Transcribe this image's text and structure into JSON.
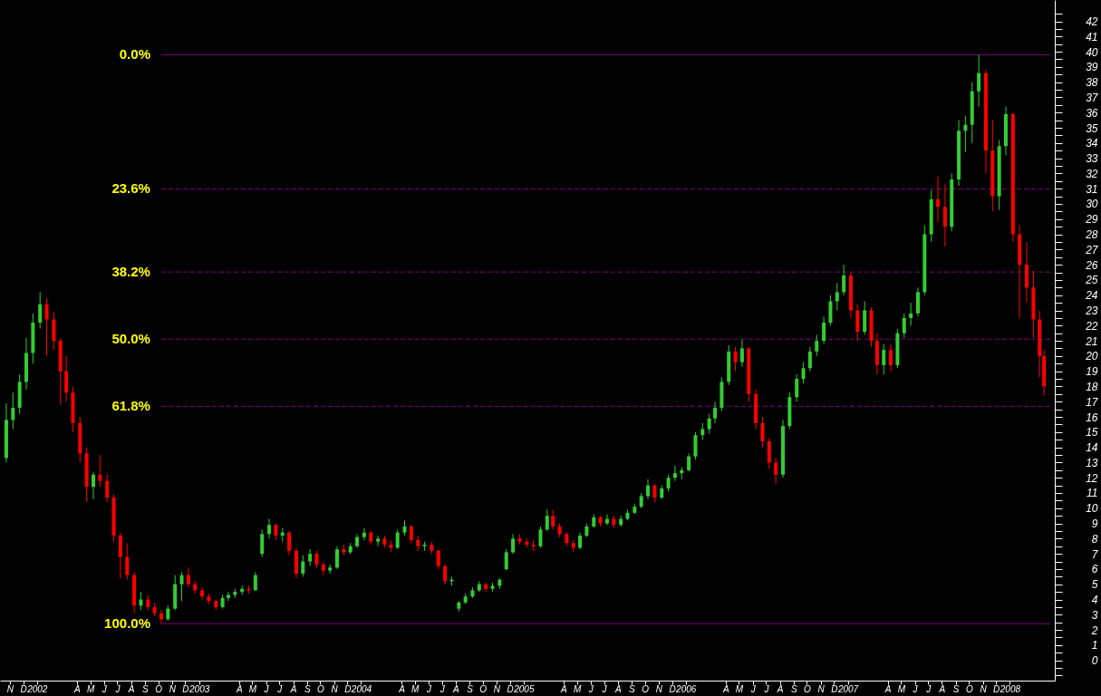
{
  "chart_data": {
    "type": "candlestick",
    "x": [
      "2001-10-24",
      "2001-11-08",
      "2001-11-23",
      "2001-12-08",
      "2001-12-23",
      "2002-01-08",
      "2002-01-23",
      "2002-02-08",
      "2002-02-23",
      "2002-03-08",
      "2002-03-23",
      "2002-04-08",
      "2002-04-23",
      "2002-05-08",
      "2002-05-23",
      "2002-06-08",
      "2002-06-23",
      "2002-07-08",
      "2002-07-23",
      "2002-08-08",
      "2002-08-23",
      "2002-09-08",
      "2002-09-23",
      "2002-10-08",
      "2002-10-23",
      "2002-11-08",
      "2002-11-23",
      "2002-12-08",
      "2002-12-23",
      "2003-01-08",
      "2003-01-23",
      "2003-02-08",
      "2003-02-23",
      "2003-03-08",
      "2003-03-23",
      "2003-04-08",
      "2003-04-23",
      "2003-05-08",
      "2003-05-23",
      "2003-06-08",
      "2003-06-23",
      "2003-07-08",
      "2003-07-23",
      "2003-08-08",
      "2003-08-23",
      "2003-09-08",
      "2003-09-23",
      "2003-10-08",
      "2003-10-23",
      "2003-11-08",
      "2003-11-23",
      "2003-12-08",
      "2003-12-23",
      "2004-01-08",
      "2004-01-23",
      "2004-02-08",
      "2004-02-23",
      "2004-03-08",
      "2004-03-23",
      "2004-04-08",
      "2004-04-23",
      "2004-05-08",
      "2004-05-23",
      "2004-06-08",
      "2004-06-23",
      "2004-07-08",
      "2004-07-23",
      "2004-08-08",
      "2004-08-23",
      "2004-09-08",
      "2004-09-23",
      "2004-10-08",
      "2004-10-23",
      "2004-11-08",
      "2004-11-23",
      "2004-12-08",
      "2004-12-23",
      "2005-01-08",
      "2005-01-23",
      "2005-02-08",
      "2005-02-23",
      "2005-03-08",
      "2005-03-23",
      "2005-04-08",
      "2005-04-23",
      "2005-05-08",
      "2005-05-23",
      "2005-06-08",
      "2005-06-23",
      "2005-07-08",
      "2005-07-23",
      "2005-08-08",
      "2005-08-23",
      "2005-09-08",
      "2005-09-23",
      "2005-10-08",
      "2005-10-23",
      "2005-11-08",
      "2005-11-23",
      "2005-12-08",
      "2005-12-23",
      "2006-01-08",
      "2006-01-23",
      "2006-02-08",
      "2006-02-23",
      "2006-03-08",
      "2006-03-23",
      "2006-04-08",
      "2006-04-23",
      "2006-05-08",
      "2006-05-23",
      "2006-06-08",
      "2006-06-23",
      "2006-07-08",
      "2006-07-23",
      "2006-08-08",
      "2006-08-23",
      "2006-09-08",
      "2006-09-23",
      "2006-10-08",
      "2006-10-23",
      "2006-11-08",
      "2006-11-23",
      "2006-12-08",
      "2006-12-23",
      "2007-01-08",
      "2007-01-23",
      "2007-02-08",
      "2007-02-23",
      "2007-03-08",
      "2007-03-23",
      "2007-04-08",
      "2007-04-23",
      "2007-05-08",
      "2007-05-23",
      "2007-06-08",
      "2007-06-23",
      "2007-07-08",
      "2007-07-23",
      "2007-08-08",
      "2007-08-23",
      "2007-09-08",
      "2007-09-23",
      "2007-10-08",
      "2007-10-23",
      "2007-11-08",
      "2007-11-23",
      "2007-12-08",
      "2007-12-23",
      "2008-01-08",
      "2008-01-23",
      "2008-02-08",
      "2008-02-23",
      "2008-03-08",
      "2008-03-18"
    ],
    "ohlc": [
      [
        13.3,
        16.9,
        13.0,
        15.8
      ],
      [
        15.8,
        17.6,
        15.2,
        16.6
      ],
      [
        16.6,
        18.8,
        16.2,
        18.3
      ],
      [
        18.3,
        21.2,
        17.8,
        20.2
      ],
      [
        20.2,
        22.8,
        19.5,
        22.2
      ],
      [
        22.2,
        24.2,
        21.8,
        23.4
      ],
      [
        23.4,
        23.8,
        20.0,
        22.4
      ],
      [
        22.4,
        22.9,
        20.4,
        21.0
      ],
      [
        21.0,
        21.2,
        16.8,
        19.0
      ],
      [
        19.0,
        20.0,
        17.0,
        17.6
      ],
      [
        17.6,
        18.0,
        15.0,
        15.6
      ],
      [
        15.6,
        16.0,
        13.0,
        13.6
      ],
      [
        13.6,
        14.0,
        10.4,
        11.4
      ],
      [
        11.4,
        12.4,
        10.6,
        12.2
      ],
      [
        12.2,
        13.5,
        11.4,
        11.8
      ],
      [
        11.8,
        12.2,
        10.4,
        10.7
      ],
      [
        10.7,
        10.9,
        7.8,
        8.2
      ],
      [
        8.2,
        8.4,
        5.4,
        6.8
      ],
      [
        6.8,
        7.7,
        5.3,
        5.6
      ],
      [
        5.6,
        5.8,
        3.1,
        3.6
      ],
      [
        3.6,
        4.5,
        3.3,
        4.0
      ],
      [
        4.0,
        4.3,
        3.3,
        3.5
      ],
      [
        3.5,
        3.8,
        2.9,
        3.1
      ],
      [
        3.1,
        3.3,
        2.4,
        2.7
      ],
      [
        2.7,
        3.6,
        2.6,
        3.4
      ],
      [
        3.4,
        5.6,
        3.3,
        5.0
      ],
      [
        5.0,
        5.8,
        3.9,
        5.6
      ],
      [
        5.6,
        6.1,
        4.8,
        5.0
      ],
      [
        5.0,
        5.2,
        4.4,
        4.6
      ],
      [
        4.6,
        4.8,
        4.0,
        4.2
      ],
      [
        4.2,
        4.4,
        3.7,
        3.9
      ],
      [
        3.9,
        4.0,
        3.3,
        3.5
      ],
      [
        3.5,
        4.3,
        3.4,
        4.1
      ],
      [
        4.1,
        4.5,
        3.9,
        4.3
      ],
      [
        4.3,
        4.7,
        4.1,
        4.5
      ],
      [
        4.5,
        4.9,
        4.3,
        4.7
      ],
      [
        4.7,
        4.9,
        4.4,
        4.6
      ],
      [
        4.6,
        5.8,
        4.6,
        5.6
      ],
      [
        7.0,
        8.6,
        6.8,
        8.3
      ],
      [
        8.3,
        9.3,
        8.0,
        8.9
      ],
      [
        8.9,
        9.0,
        7.9,
        8.2
      ],
      [
        8.2,
        8.7,
        7.8,
        8.4
      ],
      [
        8.4,
        8.5,
        6.9,
        7.2
      ],
      [
        7.2,
        7.4,
        5.4,
        5.7
      ],
      [
        5.7,
        6.9,
        5.5,
        6.5
      ],
      [
        6.5,
        7.3,
        6.2,
        7.0
      ],
      [
        7.0,
        7.2,
        6.1,
        6.3
      ],
      [
        6.3,
        6.5,
        5.6,
        5.9
      ],
      [
        5.9,
        6.3,
        5.7,
        6.1
      ],
      [
        6.1,
        7.5,
        6.0,
        7.3
      ],
      [
        7.3,
        7.6,
        6.9,
        7.1
      ],
      [
        7.1,
        7.7,
        7.0,
        7.5
      ],
      [
        7.5,
        8.3,
        7.4,
        8.1
      ],
      [
        8.1,
        8.7,
        7.9,
        8.4
      ],
      [
        8.4,
        8.5,
        7.6,
        7.8
      ],
      [
        7.8,
        8.2,
        7.5,
        8.0
      ],
      [
        8.0,
        8.2,
        7.4,
        7.6
      ],
      [
        7.6,
        7.9,
        7.1,
        7.4
      ],
      [
        7.4,
        8.6,
        7.3,
        8.4
      ],
      [
        8.4,
        9.2,
        8.2,
        8.8
      ],
      [
        8.8,
        8.9,
        7.7,
        7.9
      ],
      [
        7.9,
        8.2,
        7.2,
        7.5
      ],
      [
        7.5,
        7.8,
        7.2,
        7.6
      ],
      [
        7.6,
        7.8,
        7.0,
        7.2
      ],
      [
        7.2,
        7.3,
        6.0,
        6.2
      ],
      [
        6.2,
        6.3,
        5.0,
        5.2
      ],
      [
        5.2,
        5.5,
        4.9,
        5.3
      ],
      [
        3.4,
        3.9,
        3.2,
        3.8
      ],
      [
        3.8,
        4.4,
        3.7,
        4.2
      ],
      [
        4.2,
        4.8,
        4.1,
        4.6
      ],
      [
        4.6,
        5.2,
        4.5,
        5.0
      ],
      [
        5.0,
        5.1,
        4.5,
        4.7
      ],
      [
        4.7,
        5.1,
        4.5,
        4.9
      ],
      [
        4.9,
        5.4,
        4.7,
        5.3
      ],
      [
        6.0,
        7.3,
        5.9,
        7.1
      ],
      [
        7.1,
        8.3,
        7.0,
        8.0
      ],
      [
        8.0,
        8.3,
        7.6,
        7.8
      ],
      [
        7.8,
        8.0,
        7.4,
        7.6
      ],
      [
        7.6,
        7.9,
        7.2,
        7.5
      ],
      [
        7.5,
        8.8,
        7.4,
        8.6
      ],
      [
        8.6,
        9.9,
        8.5,
        9.5
      ],
      [
        9.5,
        9.9,
        8.6,
        8.8
      ],
      [
        8.8,
        9.0,
        8.1,
        8.3
      ],
      [
        8.3,
        8.4,
        7.5,
        7.7
      ],
      [
        7.7,
        7.9,
        7.1,
        7.4
      ],
      [
        7.4,
        8.4,
        7.3,
        8.2
      ],
      [
        8.2,
        9.0,
        8.1,
        8.8
      ],
      [
        8.8,
        9.6,
        8.7,
        9.4
      ],
      [
        9.4,
        9.5,
        8.8,
        9.0
      ],
      [
        9.0,
        9.6,
        8.9,
        9.3
      ],
      [
        9.3,
        9.5,
        8.7,
        8.9
      ],
      [
        8.9,
        9.5,
        8.8,
        9.3
      ],
      [
        9.3,
        9.9,
        9.2,
        9.7
      ],
      [
        9.7,
        10.3,
        9.6,
        10.1
      ],
      [
        10.1,
        11.0,
        10.0,
        10.8
      ],
      [
        10.8,
        11.9,
        10.6,
        11.5
      ],
      [
        11.5,
        11.6,
        10.4,
        10.7
      ],
      [
        10.7,
        11.5,
        10.6,
        11.3
      ],
      [
        11.3,
        12.2,
        11.1,
        12.0
      ],
      [
        12.0,
        12.8,
        11.8,
        12.3
      ],
      [
        12.3,
        12.7,
        11.9,
        12.5
      ],
      [
        12.5,
        13.6,
        12.4,
        13.4
      ],
      [
        13.4,
        15.0,
        13.2,
        14.8
      ],
      [
        14.8,
        15.6,
        14.5,
        15.2
      ],
      [
        15.2,
        16.2,
        14.9,
        15.9
      ],
      [
        15.9,
        17.0,
        15.6,
        16.6
      ],
      [
        16.6,
        18.6,
        16.4,
        18.3
      ],
      [
        18.3,
        20.7,
        18.1,
        20.3
      ],
      [
        20.3,
        20.6,
        19.0,
        19.6
      ],
      [
        19.6,
        21.1,
        19.3,
        20.5
      ],
      [
        20.5,
        20.6,
        17.0,
        17.5
      ],
      [
        17.5,
        17.8,
        15.2,
        15.6
      ],
      [
        15.6,
        16.0,
        14.0,
        14.4
      ],
      [
        14.4,
        14.6,
        12.6,
        13.0
      ],
      [
        13.0,
        13.3,
        11.6,
        12.2
      ],
      [
        12.2,
        15.8,
        12.0,
        15.4
      ],
      [
        15.4,
        17.6,
        15.2,
        17.3
      ],
      [
        17.3,
        18.8,
        17.0,
        18.5
      ],
      [
        18.5,
        19.6,
        18.2,
        19.2
      ],
      [
        19.2,
        20.6,
        19.0,
        20.3
      ],
      [
        20.3,
        21.4,
        20.0,
        21.0
      ],
      [
        21.0,
        22.6,
        20.8,
        22.2
      ],
      [
        22.2,
        24.0,
        22.0,
        23.6
      ],
      [
        23.6,
        24.8,
        23.0,
        24.2
      ],
      [
        24.2,
        26.0,
        24.0,
        25.3
      ],
      [
        25.3,
        25.5,
        22.5,
        23.0
      ],
      [
        23.0,
        23.4,
        21.0,
        21.6
      ],
      [
        21.6,
        23.6,
        21.4,
        23.0
      ],
      [
        23.0,
        23.2,
        20.6,
        21.0
      ],
      [
        21.0,
        21.5,
        18.8,
        19.4
      ],
      [
        19.4,
        20.8,
        18.8,
        20.4
      ],
      [
        20.4,
        20.8,
        19.0,
        19.4
      ],
      [
        19.4,
        21.8,
        19.2,
        21.5
      ],
      [
        21.5,
        22.8,
        21.2,
        22.5
      ],
      [
        22.5,
        23.5,
        22.0,
        22.8
      ],
      [
        22.8,
        24.5,
        22.6,
        24.2
      ],
      [
        24.2,
        28.6,
        24.0,
        28.0
      ],
      [
        28.0,
        30.9,
        27.5,
        30.3
      ],
      [
        30.3,
        31.8,
        28.8,
        29.8
      ],
      [
        29.8,
        31.3,
        27.2,
        28.5
      ],
      [
        28.5,
        32.0,
        28.2,
        31.6
      ],
      [
        31.6,
        35.5,
        31.2,
        34.8
      ],
      [
        34.8,
        35.8,
        33.4,
        35.2
      ],
      [
        35.2,
        38.0,
        34.0,
        37.4
      ],
      [
        37.4,
        39.8,
        36.4,
        38.6
      ],
      [
        38.6,
        38.8,
        32.0,
        33.5
      ],
      [
        33.5,
        35.5,
        29.5,
        30.5
      ],
      [
        30.5,
        34.2,
        29.6,
        33.8
      ],
      [
        33.8,
        36.4,
        33.2,
        35.9
      ],
      [
        35.9,
        36.0,
        27.5,
        28.0
      ],
      [
        28.0,
        28.6,
        22.5,
        26.0
      ],
      [
        26.0,
        27.5,
        23.5,
        24.5
      ],
      [
        24.5,
        25.6,
        21.2,
        22.4
      ],
      [
        22.4,
        23.0,
        18.6,
        20.0
      ],
      [
        20.0,
        20.4,
        17.4,
        18.0
      ]
    ],
    "colors": [
      "#32cd32",
      "#32cd32",
      "#32cd32",
      "#32cd32",
      "#32cd32",
      "#32cd32",
      "#ff0000",
      "#ff0000",
      "#ff0000",
      "#ff0000",
      "#ff0000",
      "#ff0000",
      "#ff0000",
      "#32cd32",
      "#ff0000",
      "#ff0000",
      "#ff0000",
      "#ff0000",
      "#ff0000",
      "#ff0000",
      "#32cd32",
      "#ff0000",
      "#ff0000",
      "#ff0000",
      "#32cd32",
      "#32cd32",
      "#32cd32",
      "#ff0000",
      "#ff0000",
      "#ff0000",
      "#ff0000",
      "#ff0000",
      "#32cd32",
      "#32cd32",
      "#32cd32",
      "#32cd32",
      "#ff0000",
      "#32cd32",
      "#32cd32",
      "#32cd32",
      "#ff0000",
      "#32cd32",
      "#ff0000",
      "#ff0000",
      "#32cd32",
      "#32cd32",
      "#ff0000",
      "#ff0000",
      "#32cd32",
      "#32cd32",
      "#ff0000",
      "#32cd32",
      "#32cd32",
      "#32cd32",
      "#ff0000",
      "#32cd32",
      "#ff0000",
      "#ff0000",
      "#32cd32",
      "#32cd32",
      "#ff0000",
      "#ff0000",
      "#32cd32",
      "#ff0000",
      "#ff0000",
      "#ff0000",
      "#32cd32",
      "#32cd32",
      "#32cd32",
      "#32cd32",
      "#32cd32",
      "#ff0000",
      "#32cd32",
      "#32cd32",
      "#32cd32",
      "#32cd32",
      "#ff0000",
      "#ff0000",
      "#ff0000",
      "#32cd32",
      "#32cd32",
      "#ff0000",
      "#ff0000",
      "#ff0000",
      "#ff0000",
      "#32cd32",
      "#32cd32",
      "#32cd32",
      "#ff0000",
      "#32cd32",
      "#ff0000",
      "#32cd32",
      "#32cd32",
      "#32cd32",
      "#32cd32",
      "#32cd32",
      "#ff0000",
      "#32cd32",
      "#32cd32",
      "#32cd32",
      "#32cd32",
      "#32cd32",
      "#32cd32",
      "#32cd32",
      "#32cd32",
      "#32cd32",
      "#32cd32",
      "#32cd32",
      "#ff0000",
      "#32cd32",
      "#ff0000",
      "#ff0000",
      "#ff0000",
      "#ff0000",
      "#ff0000",
      "#32cd32",
      "#32cd32",
      "#32cd32",
      "#32cd32",
      "#32cd32",
      "#32cd32",
      "#32cd32",
      "#32cd32",
      "#32cd32",
      "#32cd32",
      "#ff0000",
      "#ff0000",
      "#32cd32",
      "#ff0000",
      "#ff0000",
      "#32cd32",
      "#ff0000",
      "#32cd32",
      "#32cd32",
      "#32cd32",
      "#32cd32",
      "#32cd32",
      "#32cd32",
      "#ff0000",
      "#ff0000",
      "#32cd32",
      "#32cd32",
      "#32cd32",
      "#32cd32",
      "#32cd32",
      "#ff0000",
      "#ff0000",
      "#32cd32",
      "#32cd32",
      "#ff0000",
      "#ff0000",
      "#ff0000",
      "#ff0000",
      "#ff0000",
      "#ff0000"
    ],
    "xlim": [
      "2001-10-20",
      "2008-04-01"
    ],
    "xticks": [
      {
        "value": "2001-11-01",
        "label": "N"
      },
      {
        "value": "2001-12-01",
        "label": "D"
      },
      {
        "value": "2002-01-01",
        "label": "2002"
      },
      {
        "value": "2002-04-01",
        "label": "A"
      },
      {
        "value": "2002-05-01",
        "label": "M"
      },
      {
        "value": "2002-06-01",
        "label": "J"
      },
      {
        "value": "2002-07-01",
        "label": "J"
      },
      {
        "value": "2002-08-01",
        "label": "A"
      },
      {
        "value": "2002-09-01",
        "label": "S"
      },
      {
        "value": "2002-10-01",
        "label": "O"
      },
      {
        "value": "2002-11-01",
        "label": "N"
      },
      {
        "value": "2002-12-01",
        "label": "D"
      },
      {
        "value": "2003-01-01",
        "label": "2003"
      },
      {
        "value": "2003-04-01",
        "label": "A"
      },
      {
        "value": "2003-05-01",
        "label": "M"
      },
      {
        "value": "2003-06-01",
        "label": "J"
      },
      {
        "value": "2003-07-01",
        "label": "J"
      },
      {
        "value": "2003-08-01",
        "label": "A"
      },
      {
        "value": "2003-09-01",
        "label": "S"
      },
      {
        "value": "2003-10-01",
        "label": "O"
      },
      {
        "value": "2003-11-01",
        "label": "N"
      },
      {
        "value": "2003-12-01",
        "label": "D"
      },
      {
        "value": "2004-01-01",
        "label": "2004"
      },
      {
        "value": "2004-04-01",
        "label": "A"
      },
      {
        "value": "2004-05-01",
        "label": "M"
      },
      {
        "value": "2004-06-01",
        "label": "J"
      },
      {
        "value": "2004-07-01",
        "label": "J"
      },
      {
        "value": "2004-08-01",
        "label": "A"
      },
      {
        "value": "2004-09-01",
        "label": "S"
      },
      {
        "value": "2004-10-01",
        "label": "O"
      },
      {
        "value": "2004-11-01",
        "label": "N"
      },
      {
        "value": "2004-12-01",
        "label": "D"
      },
      {
        "value": "2005-01-01",
        "label": "2005"
      },
      {
        "value": "2005-04-01",
        "label": "A"
      },
      {
        "value": "2005-05-01",
        "label": "M"
      },
      {
        "value": "2005-06-01",
        "label": "J"
      },
      {
        "value": "2005-07-01",
        "label": "J"
      },
      {
        "value": "2005-08-01",
        "label": "A"
      },
      {
        "value": "2005-09-01",
        "label": "S"
      },
      {
        "value": "2005-10-01",
        "label": "O"
      },
      {
        "value": "2005-11-01",
        "label": "N"
      },
      {
        "value": "2005-12-01",
        "label": "D"
      },
      {
        "value": "2006-01-01",
        "label": "2006"
      },
      {
        "value": "2006-04-01",
        "label": "A"
      },
      {
        "value": "2006-05-01",
        "label": "M"
      },
      {
        "value": "2006-06-01",
        "label": "J"
      },
      {
        "value": "2006-07-01",
        "label": "J"
      },
      {
        "value": "2006-08-01",
        "label": "A"
      },
      {
        "value": "2006-09-01",
        "label": "S"
      },
      {
        "value": "2006-10-01",
        "label": "O"
      },
      {
        "value": "2006-11-01",
        "label": "N"
      },
      {
        "value": "2006-12-01",
        "label": "D"
      },
      {
        "value": "2007-01-01",
        "label": "2007"
      },
      {
        "value": "2007-04-01",
        "label": "A"
      },
      {
        "value": "2007-05-01",
        "label": "M"
      },
      {
        "value": "2007-06-01",
        "label": "J"
      },
      {
        "value": "2007-07-01",
        "label": "J"
      },
      {
        "value": "2007-08-01",
        "label": "A"
      },
      {
        "value": "2007-09-01",
        "label": "S"
      },
      {
        "value": "2007-10-01",
        "label": "O"
      },
      {
        "value": "2007-11-01",
        "label": "N"
      },
      {
        "value": "2007-12-01",
        "label": "D"
      },
      {
        "value": "2008-01-01",
        "label": "2008"
      }
    ],
    "ylim": [
      -1.33,
      43.4
    ],
    "yticks": [
      {
        "value": -1,
        "label": null
      },
      {
        "value": -0.5,
        "label": null
      },
      0,
      {
        "value": 0.5,
        "label": null
      },
      1,
      {
        "value": 1.5,
        "label": null
      },
      2,
      {
        "value": 2.5,
        "label": null
      },
      3,
      {
        "value": 3.5,
        "label": null
      },
      4,
      {
        "value": 4.5,
        "label": null
      },
      5,
      {
        "value": 5.5,
        "label": null
      },
      6,
      {
        "value": 6.5,
        "label": null
      },
      7,
      {
        "value": 7.5,
        "label": null
      },
      8,
      {
        "value": 8.5,
        "label": null
      },
      9,
      {
        "value": 9.5,
        "label": null
      },
      10,
      {
        "value": 10.5,
        "label": null
      },
      11,
      {
        "value": 11.5,
        "label": null
      },
      12,
      {
        "value": 12.5,
        "label": null
      },
      13,
      {
        "value": 13.5,
        "label": null
      },
      14,
      {
        "value": 14.5,
        "label": null
      },
      15,
      {
        "value": 15.5,
        "label": null
      },
      16,
      {
        "value": 16.5,
        "label": null
      },
      17,
      {
        "value": 17.5,
        "label": null
      },
      18,
      {
        "value": 18.5,
        "label": null
      },
      19,
      {
        "value": 19.5,
        "label": null
      },
      20,
      {
        "value": 20.5,
        "label": null
      },
      21,
      {
        "value": 21.5,
        "label": null
      },
      22,
      {
        "value": 22.5,
        "label": null
      },
      23,
      {
        "value": 23.5,
        "label": null
      },
      24,
      {
        "value": 24.5,
        "label": null
      },
      25,
      {
        "value": 25.5,
        "label": null
      },
      26,
      {
        "value": 26.5,
        "label": null
      },
      27,
      {
        "value": 27.5,
        "label": null
      },
      28,
      {
        "value": 28.5,
        "label": null
      },
      29,
      {
        "value": 29.5,
        "label": null
      },
      30,
      {
        "value": 30.5,
        "label": null
      },
      31,
      {
        "value": 31.5,
        "label": null
      },
      32,
      {
        "value": 32.5,
        "label": null
      },
      33,
      {
        "value": 33.5,
        "label": null
      },
      34,
      {
        "value": 34.5,
        "label": null
      },
      35,
      {
        "value": 35.5,
        "label": null
      },
      36,
      {
        "value": 36.5,
        "label": null
      },
      37,
      {
        "value": 37.5,
        "label": null
      },
      38,
      {
        "value": 38.5,
        "label": null
      },
      39,
      {
        "value": 39.5,
        "label": null
      },
      40,
      {
        "value": 40.5,
        "label": null
      },
      41,
      {
        "value": 41.5,
        "label": null
      },
      42,
      {
        "value": 42.5,
        "label": null
      }
    ],
    "y2lim": [
      110.0,
      -9.6
    ],
    "ref_lines": [
      {
        "axis": "y2",
        "value": 0,
        "label": "0.0%",
        "color": "#800080",
        "line_style": "solid"
      },
      {
        "axis": "y2",
        "value": 23.6,
        "label": "23.6%",
        "color": "#800080",
        "line_style": "dashed"
      },
      {
        "axis": "y2",
        "value": 38.2,
        "label": "38.2%",
        "color": "#800080",
        "line_style": "dashed"
      },
      {
        "axis": "y2",
        "value": 50,
        "label": "50.0%",
        "color": "#800080",
        "line_style": "dashed"
      },
      {
        "axis": "y2",
        "value": 61.8,
        "label": "61.8%",
        "color": "#800080",
        "line_style": "dashed"
      },
      {
        "axis": "y2",
        "value": 100,
        "label": "100.0%",
        "color": "#800080",
        "line_style": "solid"
      }
    ]
  }
}
